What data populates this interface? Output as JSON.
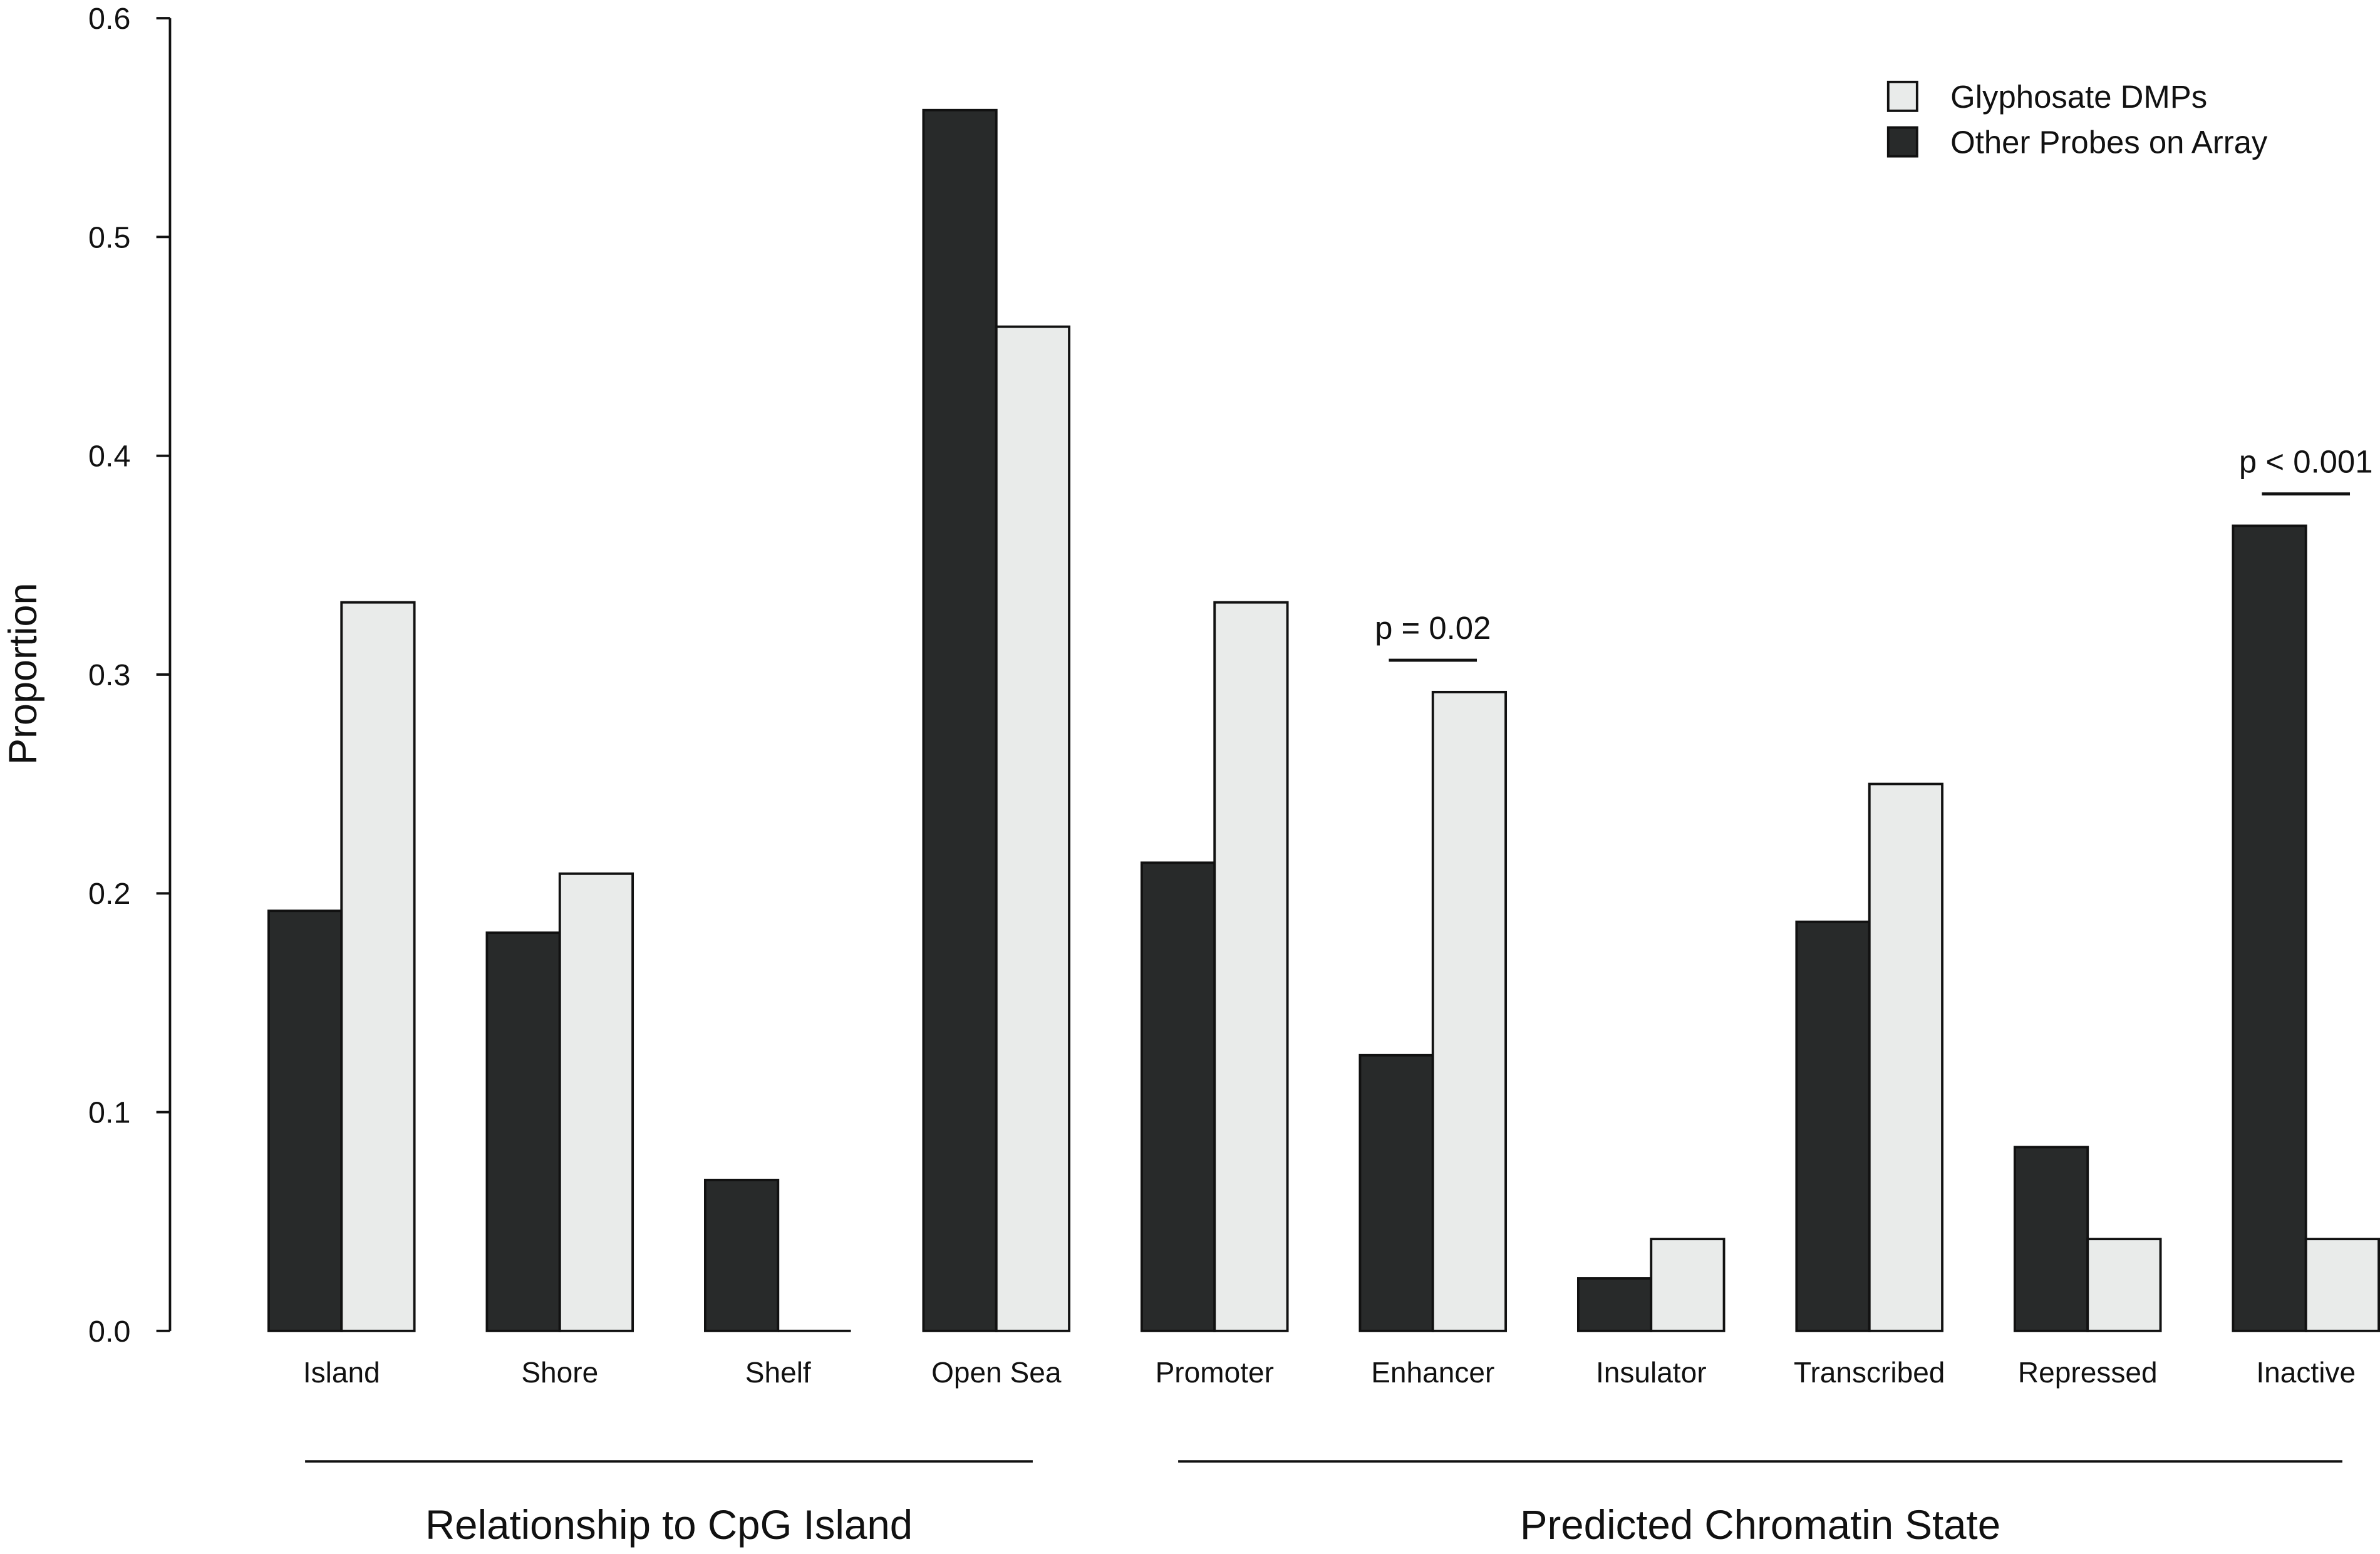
{
  "chart_data": {
    "type": "bar",
    "y_label": "Proportion",
    "categories": [
      "Island",
      "Shore",
      "Shelf",
      "Open Sea",
      "Promoter",
      "Enhancer",
      "Insulator",
      "Transcribed",
      "Repressed",
      "Inactive"
    ],
    "series": [
      {
        "name": "Other Probes on Array",
        "color": "#282a2a",
        "values": [
          0.192,
          0.182,
          0.069,
          0.558,
          0.214,
          0.126,
          0.024,
          0.187,
          0.084,
          0.368
        ]
      },
      {
        "name": "Glyphosate DMPs",
        "color": "#e9ebea",
        "values": [
          0.333,
          0.209,
          0,
          0.459,
          0.333,
          0.292,
          0.042,
          0.25,
          0.042,
          0.042
        ]
      }
    ],
    "ylim": [
      0,
      0.6
    ],
    "yticks": [
      {
        "value": 0,
        "label": "0.0"
      },
      0.1,
      0.2,
      0.3,
      0.4,
      0.5,
      0.6
    ],
    "legend": "top-right",
    "annotations": [
      "p = 0.02",
      "p < 0.001"
    ],
    "groups": [
      "Relationship to CpG Island",
      "Predicted Chromatin State"
    ]
  }
}
